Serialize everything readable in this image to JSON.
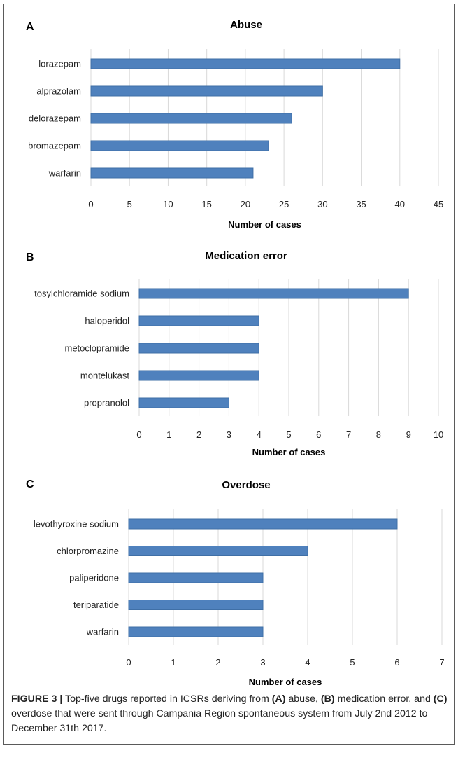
{
  "chart_data": [
    {
      "type": "bar",
      "orientation": "horizontal",
      "panel": "A",
      "title": "Abuse",
      "categories": [
        "lorazepam",
        "alprazolam",
        "delorazepam",
        "bromazepam",
        "warfarin"
      ],
      "values": [
        40,
        30,
        26,
        23,
        21
      ],
      "xlabel": "Number of cases",
      "xlim": [
        0,
        45
      ],
      "xticks": [
        0,
        5,
        10,
        15,
        20,
        25,
        30,
        35,
        40,
        45
      ],
      "grid": "vertical",
      "bar_color": "#4f81bd"
    },
    {
      "type": "bar",
      "orientation": "horizontal",
      "panel": "B",
      "title": "Medication error",
      "categories": [
        "tosylchloramide sodium",
        "haloperidol",
        "metoclopramide",
        "montelukast",
        "propranolol"
      ],
      "values": [
        9,
        4,
        4,
        4,
        3
      ],
      "xlabel": "Number of cases",
      "xlim": [
        0,
        10
      ],
      "xticks": [
        0,
        1,
        2,
        3,
        4,
        5,
        6,
        7,
        8,
        9,
        10
      ],
      "grid": "vertical",
      "bar_color": "#4f81bd"
    },
    {
      "type": "bar",
      "orientation": "horizontal",
      "panel": "C",
      "title": "Overdose",
      "categories": [
        "levothyroxine sodium",
        "chlorpromazine",
        "paliperidone",
        "teriparatide",
        "warfarin"
      ],
      "values": [
        6,
        4,
        3,
        3,
        3
      ],
      "xlabel": "Number of cases",
      "xlim": [
        0,
        7
      ],
      "xticks": [
        0,
        1,
        2,
        3,
        4,
        5,
        6,
        7
      ],
      "grid": "vertical",
      "bar_color": "#4f81bd"
    }
  ],
  "caption": {
    "label": "FIGURE 3 |",
    "t1": " Top-five drugs reported in ICSRs deriving from ",
    "a": "(A)",
    "t2": " abuse, ",
    "b": "(B)",
    "t3": " medication error, and ",
    "c": "(C)",
    "t4": " overdose that were sent through Campania Region spontaneous system from July 2nd 2012 to December 31th 2017."
  }
}
